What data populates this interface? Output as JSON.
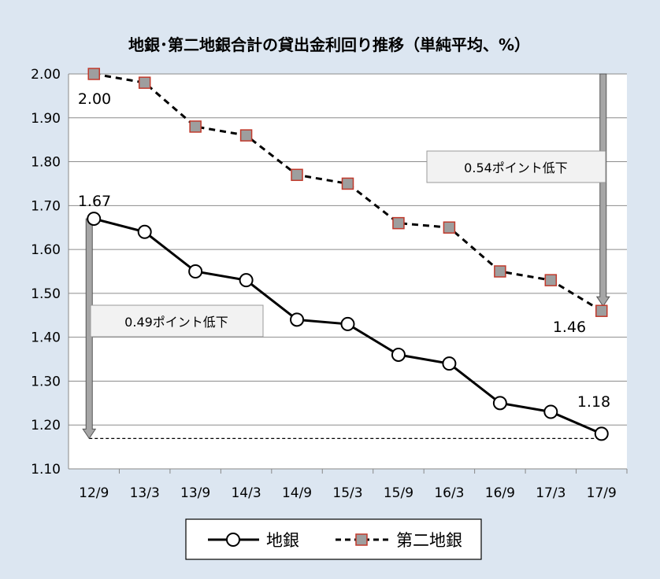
{
  "chart_data": {
    "type": "line",
    "title": "地銀･第二地銀合計の貸出金利回り推移（単純平均、%）",
    "categories": [
      "12/9",
      "13/3",
      "13/9",
      "14/3",
      "14/9",
      "15/3",
      "15/9",
      "16/3",
      "16/9",
      "17/3",
      "17/9"
    ],
    "series": [
      {
        "name": "地銀",
        "values": [
          1.67,
          1.64,
          1.55,
          1.53,
          1.44,
          1.43,
          1.36,
          1.34,
          1.25,
          1.23,
          1.18
        ],
        "style": "solid",
        "marker": "circle",
        "color": "#000000",
        "marker_fill": "#ffffff"
      },
      {
        "name": "第二地銀",
        "values": [
          2.0,
          1.98,
          1.88,
          1.86,
          1.77,
          1.75,
          1.66,
          1.65,
          1.55,
          1.53,
          1.46
        ],
        "style": "dashed",
        "marker": "square",
        "color": "#000000",
        "marker_fill": "#9e9e9e",
        "marker_stroke": "#c0392b"
      }
    ],
    "ylim": [
      1.1,
      2.0
    ],
    "yticks": [
      "1.10",
      "1.20",
      "1.30",
      "1.40",
      "1.50",
      "1.60",
      "1.70",
      "1.80",
      "1.90",
      "2.00"
    ],
    "grid": true,
    "legend_position": "bottom",
    "data_labels": {
      "dai2_start": "2.00",
      "dai2_end": "1.46",
      "chigin_start": "1.67",
      "chigin_end": "1.18"
    },
    "annotations": {
      "dai2_drop": "0.54ポイント低下",
      "chigin_drop": "0.49ポイント低下"
    }
  }
}
